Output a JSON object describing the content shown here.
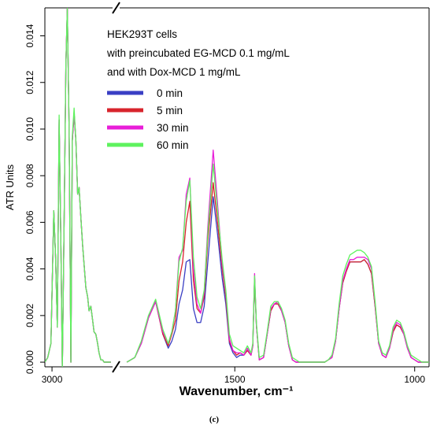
{
  "chart_data": {
    "type": "line",
    "xlabel": "Wavenumber, cm⁻¹",
    "ylabel": "ATR Units",
    "caption": "(c)",
    "annotation": [
      "HEK293T cells",
      "with preincubated EG-MCD 0.1 mg/mL",
      "and with Dox-MCD 1 mg/mL"
    ],
    "legend_position": "top-left",
    "x_reversed": true,
    "x_broken_axis": true,
    "x_segments": [
      [
        3020,
        2830
      ],
      [
        1820,
        960
      ]
    ],
    "x_ticks": [
      3000,
      1500,
      1000
    ],
    "ylim": [
      -0.0002,
      0.0152
    ],
    "y_ticks": [
      0.0,
      0.002,
      0.004,
      0.006,
      0.008,
      0.01,
      0.012,
      0.014
    ],
    "y_tick_labels": [
      "0.000",
      "0.002",
      "0.004",
      "0.006",
      "0.008",
      "0.010",
      "0.012",
      "0.014"
    ],
    "series": [
      {
        "name": "0 min",
        "color": "#3a3fc4",
        "x": [
          3020,
          3012,
          3003,
          2995,
          2990,
          2985,
          2980,
          2975,
          2971,
          2966,
          2961,
          2957,
          2952,
          2947,
          2943,
          2938,
          2933,
          2928,
          2924,
          2919,
          2914,
          2910,
          2905,
          2900,
          2896,
          2891,
          2886,
          2882,
          2877,
          2872,
          2868,
          2863,
          2858,
          2854,
          2849,
          2844,
          2840,
          2835,
          1800,
          1778,
          1760,
          1740,
          1720,
          1700,
          1685,
          1675,
          1665,
          1655,
          1645,
          1635,
          1625,
          1615,
          1605,
          1595,
          1585,
          1575,
          1560,
          1548,
          1535,
          1525,
          1515,
          1505,
          1495,
          1485,
          1475,
          1465,
          1455,
          1450,
          1445,
          1440,
          1432,
          1420,
          1410,
          1400,
          1390,
          1380,
          1370,
          1360,
          1350,
          1340,
          1330,
          1320,
          1310,
          1300,
          1290,
          1280,
          1270,
          1260,
          1250,
          1240,
          1230,
          1220,
          1210,
          1200,
          1190,
          1180,
          1170,
          1160,
          1150,
          1140,
          1130,
          1120,
          1110,
          1100,
          1090,
          1080,
          1070,
          1060,
          1050,
          1040,
          1030,
          1020,
          1010,
          1000,
          990,
          980,
          970,
          960
        ],
        "values": [
          0.0,
          0.0002,
          0.0008,
          0.0065,
          0.0045,
          0.0015,
          0.0104,
          0.005,
          -0.0003,
          0.006,
          0.0128,
          0.0152,
          0.01,
          0.0,
          0.0095,
          0.0107,
          0.0095,
          0.0072,
          0.0075,
          0.0062,
          0.005,
          0.0042,
          0.0032,
          0.0028,
          0.0022,
          0.0024,
          0.0018,
          0.0013,
          0.0012,
          0.0008,
          0.0004,
          0.0001,
          0.0001,
          0.0,
          0.0,
          0.0,
          0.0,
          0.0,
          0.0,
          0.0002,
          0.0008,
          0.0019,
          0.0026,
          0.0012,
          0.0006,
          0.0009,
          0.0014,
          0.0025,
          0.0031,
          0.0043,
          0.0044,
          0.0023,
          0.0017,
          0.0017,
          0.0024,
          0.0043,
          0.0071,
          0.0055,
          0.0036,
          0.0025,
          0.0008,
          0.0004,
          0.0002,
          0.0003,
          0.0003,
          0.0005,
          0.0003,
          0.0007,
          0.0036,
          0.0016,
          0.0001,
          0.0002,
          0.0012,
          0.0022,
          0.0025,
          0.0025,
          0.0022,
          0.0017,
          0.0007,
          0.0001,
          0.0,
          0.0,
          0.0,
          0.0,
          0.0,
          0.0,
          0.0,
          0.0,
          0.0,
          0.0001,
          0.0002,
          0.0009,
          0.0023,
          0.0034,
          0.0039,
          0.0043,
          0.0043,
          0.0043,
          0.0043,
          0.0044,
          0.0042,
          0.0038,
          0.0024,
          0.0008,
          0.0003,
          0.0002,
          0.0006,
          0.0013,
          0.0016,
          0.0015,
          0.0012,
          0.0006,
          0.0002,
          0.0001,
          0.0,
          0.0,
          0.0,
          0.0
        ]
      },
      {
        "name": "5 min",
        "color": "#d8242c",
        "x": [
          3020,
          3012,
          3003,
          2995,
          2990,
          2985,
          2980,
          2975,
          2971,
          2966,
          2961,
          2957,
          2952,
          2947,
          2943,
          2938,
          2933,
          2928,
          2924,
          2919,
          2914,
          2910,
          2905,
          2900,
          2896,
          2891,
          2886,
          2882,
          2877,
          2872,
          2868,
          2863,
          2858,
          2854,
          2849,
          2844,
          2840,
          2835,
          1800,
          1778,
          1760,
          1740,
          1720,
          1700,
          1685,
          1675,
          1665,
          1655,
          1645,
          1635,
          1625,
          1615,
          1605,
          1595,
          1585,
          1575,
          1560,
          1548,
          1535,
          1525,
          1515,
          1505,
          1495,
          1485,
          1475,
          1465,
          1455,
          1450,
          1445,
          1440,
          1432,
          1420,
          1410,
          1400,
          1390,
          1380,
          1370,
          1360,
          1350,
          1340,
          1330,
          1320,
          1310,
          1300,
          1290,
          1280,
          1270,
          1260,
          1250,
          1240,
          1230,
          1220,
          1210,
          1200,
          1190,
          1180,
          1170,
          1160,
          1150,
          1140,
          1130,
          1120,
          1110,
          1100,
          1090,
          1080,
          1070,
          1060,
          1050,
          1040,
          1030,
          1020,
          1010,
          1000,
          990,
          980,
          970,
          960
        ],
        "values": [
          0.0,
          0.0002,
          0.0008,
          0.0065,
          0.0045,
          0.0015,
          0.0104,
          0.005,
          -0.0003,
          0.006,
          0.0128,
          0.0152,
          0.01,
          0.0,
          0.0095,
          0.0107,
          0.0095,
          0.0072,
          0.0075,
          0.0062,
          0.005,
          0.0042,
          0.0032,
          0.0028,
          0.0022,
          0.0024,
          0.0018,
          0.0013,
          0.0012,
          0.0008,
          0.0004,
          0.0001,
          0.0001,
          0.0,
          0.0,
          0.0,
          0.0,
          0.0,
          0.0,
          0.0002,
          0.0008,
          0.0019,
          0.0026,
          0.0012,
          0.0007,
          0.0012,
          0.0018,
          0.0035,
          0.0043,
          0.006,
          0.0069,
          0.0035,
          0.0023,
          0.0021,
          0.0028,
          0.0052,
          0.0077,
          0.006,
          0.004,
          0.0028,
          0.0009,
          0.0005,
          0.0003,
          0.0004,
          0.0003,
          0.0005,
          0.0003,
          0.0007,
          0.0036,
          0.0016,
          0.0001,
          0.0002,
          0.0012,
          0.0022,
          0.0025,
          0.0025,
          0.0022,
          0.0017,
          0.0007,
          0.0001,
          0.0,
          0.0,
          0.0,
          0.0,
          0.0,
          0.0,
          0.0,
          0.0,
          0.0,
          0.0001,
          0.0002,
          0.0009,
          0.0023,
          0.0034,
          0.0039,
          0.0043,
          0.0043,
          0.0043,
          0.0043,
          0.0044,
          0.0042,
          0.0038,
          0.0024,
          0.0008,
          0.0003,
          0.0002,
          0.0006,
          0.0013,
          0.0016,
          0.0015,
          0.0012,
          0.0006,
          0.0002,
          0.0001,
          0.0,
          0.0,
          0.0,
          0.0
        ]
      },
      {
        "name": "30 min",
        "color": "#e81ed8",
        "x": [
          3020,
          3012,
          3003,
          2995,
          2990,
          2985,
          2980,
          2975,
          2971,
          2966,
          2961,
          2957,
          2952,
          2947,
          2943,
          2938,
          2933,
          2928,
          2924,
          2919,
          2914,
          2910,
          2905,
          2900,
          2896,
          2891,
          2886,
          2882,
          2877,
          2872,
          2868,
          2863,
          2858,
          2854,
          2849,
          2844,
          2840,
          2835,
          1800,
          1778,
          1760,
          1740,
          1720,
          1700,
          1685,
          1675,
          1665,
          1655,
          1645,
          1635,
          1625,
          1615,
          1605,
          1595,
          1585,
          1575,
          1560,
          1548,
          1535,
          1525,
          1515,
          1505,
          1495,
          1485,
          1475,
          1465,
          1455,
          1450,
          1445,
          1440,
          1432,
          1420,
          1410,
          1400,
          1390,
          1380,
          1370,
          1360,
          1350,
          1340,
          1330,
          1320,
          1310,
          1300,
          1290,
          1280,
          1270,
          1260,
          1250,
          1240,
          1230,
          1220,
          1210,
          1200,
          1190,
          1180,
          1170,
          1160,
          1150,
          1140,
          1130,
          1120,
          1110,
          1100,
          1090,
          1080,
          1070,
          1060,
          1050,
          1040,
          1030,
          1020,
          1010,
          1000,
          990,
          980,
          970,
          960
        ],
        "values": [
          0.0,
          0.0002,
          0.0008,
          0.0065,
          0.0045,
          0.0015,
          0.0104,
          0.005,
          -0.0003,
          0.006,
          0.0128,
          0.0152,
          0.01,
          0.0,
          0.0095,
          0.0107,
          0.0095,
          0.0072,
          0.0075,
          0.0062,
          0.005,
          0.0042,
          0.0032,
          0.0028,
          0.0022,
          0.0024,
          0.0018,
          0.0013,
          0.0012,
          0.0008,
          0.0004,
          0.0001,
          0.0001,
          0.0,
          0.0,
          0.0,
          0.0,
          0.0,
          0.0,
          0.0002,
          0.0008,
          0.0019,
          0.0026,
          0.0013,
          0.0008,
          0.0013,
          0.0022,
          0.0045,
          0.0048,
          0.0072,
          0.0079,
          0.004,
          0.0025,
          0.0021,
          0.003,
          0.0058,
          0.0091,
          0.0068,
          0.0042,
          0.003,
          0.001,
          0.0005,
          0.0004,
          0.0004,
          0.0003,
          0.0006,
          0.0003,
          0.0007,
          0.0038,
          0.0016,
          0.0001,
          0.0002,
          0.0012,
          0.0023,
          0.0025,
          0.0026,
          0.0022,
          0.0017,
          0.0007,
          0.0001,
          0.0,
          0.0,
          0.0,
          0.0,
          0.0,
          0.0,
          0.0,
          0.0,
          0.0,
          0.0001,
          0.0002,
          0.0009,
          0.0023,
          0.0035,
          0.004,
          0.0044,
          0.0044,
          0.0045,
          0.0045,
          0.0045,
          0.0044,
          0.004,
          0.0025,
          0.0008,
          0.0003,
          0.0002,
          0.0006,
          0.0014,
          0.0017,
          0.0016,
          0.0012,
          0.0006,
          0.0002,
          0.0001,
          0.0,
          0.0,
          0.0,
          0.0
        ]
      },
      {
        "name": "60 min",
        "color": "#5ef25e",
        "x": [
          3020,
          3012,
          3003,
          2995,
          2990,
          2985,
          2980,
          2975,
          2971,
          2966,
          2961,
          2957,
          2952,
          2947,
          2943,
          2938,
          2933,
          2928,
          2924,
          2919,
          2914,
          2910,
          2905,
          2900,
          2896,
          2891,
          2886,
          2882,
          2877,
          2872,
          2868,
          2863,
          2858,
          2854,
          2849,
          2844,
          2840,
          2835,
          1800,
          1778,
          1760,
          1740,
          1720,
          1700,
          1685,
          1675,
          1665,
          1655,
          1645,
          1635,
          1625,
          1615,
          1605,
          1595,
          1585,
          1575,
          1560,
          1548,
          1535,
          1525,
          1515,
          1505,
          1495,
          1485,
          1475,
          1465,
          1455,
          1450,
          1445,
          1440,
          1432,
          1420,
          1410,
          1400,
          1390,
          1380,
          1370,
          1360,
          1350,
          1340,
          1330,
          1320,
          1310,
          1300,
          1290,
          1280,
          1270,
          1260,
          1250,
          1240,
          1230,
          1220,
          1210,
          1200,
          1190,
          1180,
          1170,
          1160,
          1150,
          1140,
          1130,
          1120,
          1110,
          1100,
          1090,
          1080,
          1070,
          1060,
          1050,
          1040,
          1030,
          1020,
          1010,
          1000,
          990,
          980,
          970,
          960
        ],
        "values": [
          0.0,
          0.0002,
          0.0008,
          0.0065,
          0.0045,
          0.0015,
          0.0106,
          0.005,
          -0.0003,
          0.006,
          0.0128,
          0.0152,
          0.01,
          0.0,
          0.0097,
          0.0109,
          0.0095,
          0.0072,
          0.0075,
          0.0062,
          0.005,
          0.0042,
          0.0032,
          0.0028,
          0.0022,
          0.0024,
          0.0018,
          0.0013,
          0.0012,
          0.0008,
          0.0004,
          0.0001,
          0.0001,
          0.0,
          0.0,
          0.0,
          0.0,
          0.0,
          0.0,
          0.0002,
          0.0009,
          0.002,
          0.0027,
          0.0014,
          0.0008,
          0.0013,
          0.0022,
          0.0043,
          0.0049,
          0.0069,
          0.0078,
          0.0045,
          0.0028,
          0.0023,
          0.0031,
          0.0055,
          0.0085,
          0.0065,
          0.0044,
          0.0031,
          0.0012,
          0.0007,
          0.0006,
          0.0005,
          0.0004,
          0.0007,
          0.0004,
          0.0008,
          0.0037,
          0.0017,
          0.0002,
          0.0003,
          0.0013,
          0.0024,
          0.0026,
          0.0026,
          0.0023,
          0.0018,
          0.0008,
          0.0002,
          0.0001,
          0.0,
          0.0,
          0.0,
          0.0,
          0.0,
          0.0,
          0.0,
          0.0,
          0.0001,
          0.0003,
          0.001,
          0.0025,
          0.0037,
          0.0042,
          0.0046,
          0.0047,
          0.0048,
          0.0048,
          0.0047,
          0.0045,
          0.0041,
          0.0026,
          0.0009,
          0.0004,
          0.0003,
          0.0007,
          0.0015,
          0.0018,
          0.0017,
          0.0013,
          0.0007,
          0.0003,
          0.0002,
          0.0001,
          0.0,
          0.0,
          0.0
        ]
      }
    ]
  }
}
